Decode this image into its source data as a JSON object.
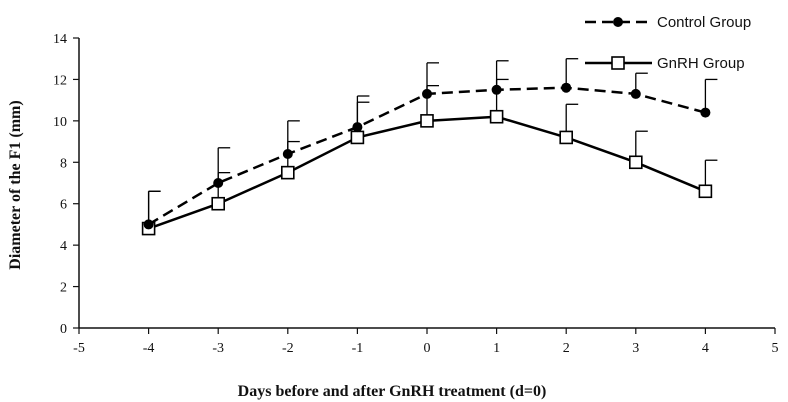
{
  "chart_data": {
    "type": "line",
    "title": "",
    "xlabel": "Days before and after GnRH treatment (d=0)",
    "ylabel": "Diameter of the F1 (mm)",
    "xlim": [
      -5,
      5
    ],
    "ylim": [
      0,
      14
    ],
    "xticks": [
      "-5",
      "-4",
      "-3",
      "-2",
      "-1",
      "0",
      "1",
      "2",
      "3",
      "4",
      "5"
    ],
    "yticks": [
      "0",
      "2",
      "4",
      "6",
      "8",
      "10",
      "12",
      "14"
    ],
    "grid": false,
    "legend_position": "top-right",
    "series": [
      {
        "name": "Control Group",
        "marker": "filled-circle",
        "line_style": "dashed",
        "color": "#000000",
        "x": [
          -4,
          -3,
          -2,
          -1,
          0,
          1,
          2,
          3,
          4
        ],
        "y": [
          5.0,
          7.0,
          8.4,
          9.7,
          11.3,
          11.5,
          11.6,
          11.3,
          10.4
        ],
        "error": [
          1.6,
          1.7,
          1.6,
          1.5,
          1.5,
          1.4,
          1.4,
          1.0,
          1.6
        ]
      },
      {
        "name": "GnRH Group",
        "marker": "open-square",
        "line_style": "solid",
        "color": "#000000",
        "x": [
          -4,
          -3,
          -2,
          -1,
          0,
          1,
          2,
          3,
          4
        ],
        "y": [
          4.8,
          6.0,
          7.5,
          9.2,
          10.0,
          10.2,
          9.2,
          8.0,
          6.6
        ],
        "error": [
          1.8,
          1.5,
          1.5,
          1.7,
          1.7,
          1.8,
          1.6,
          1.5,
          1.5
        ]
      }
    ]
  }
}
